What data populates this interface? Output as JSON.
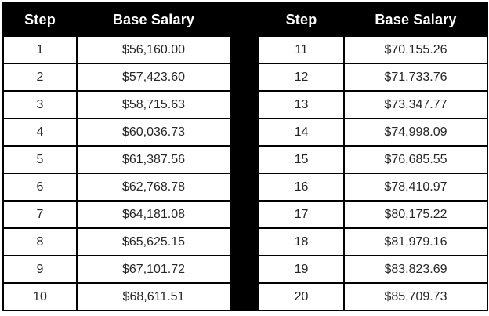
{
  "colors": {
    "header_bg": "#000000",
    "header_text": "#ffffff",
    "cell_bg": "#ffffff",
    "cell_text": "#262626",
    "border": "#000000",
    "separator": "#000000"
  },
  "table": {
    "header": {
      "step_label": "Step",
      "salary_label": "Base Salary"
    },
    "rows": [
      {
        "left_step": "1",
        "left_salary": "$56,160.00",
        "right_step": "11",
        "right_salary": "$70,155.26"
      },
      {
        "left_step": "2",
        "left_salary": "$57,423.60",
        "right_step": "12",
        "right_salary": "$71,733.76"
      },
      {
        "left_step": "3",
        "left_salary": "$58,715.63",
        "right_step": "13",
        "right_salary": "$73,347.77"
      },
      {
        "left_step": "4",
        "left_salary": "$60,036.73",
        "right_step": "14",
        "right_salary": "$74,998.09"
      },
      {
        "left_step": "5",
        "left_salary": "$61,387.56",
        "right_step": "15",
        "right_salary": "$76,685.55"
      },
      {
        "left_step": "6",
        "left_salary": "$62,768.78",
        "right_step": "16",
        "right_salary": "$78,410.97"
      },
      {
        "left_step": "7",
        "left_salary": "$64,181.08",
        "right_step": "17",
        "right_salary": "$80,175.22"
      },
      {
        "left_step": "8",
        "left_salary": "$65,625.15",
        "right_step": "18",
        "right_salary": "$81,979.16"
      },
      {
        "left_step": "9",
        "left_salary": "$67,101.72",
        "right_step": "19",
        "right_salary": "$83,823.69"
      },
      {
        "left_step": "10",
        "left_salary": "$68,611.51",
        "right_step": "20",
        "right_salary": "$85,709.73"
      }
    ]
  }
}
